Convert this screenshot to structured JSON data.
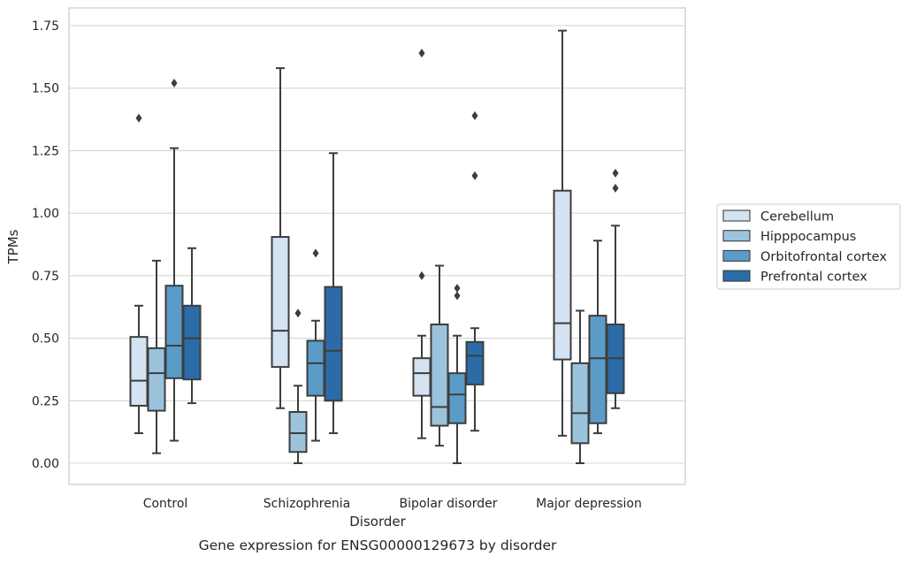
{
  "chart_data": {
    "type": "box",
    "caption": "Gene expression for ENSG00000129673 by disorder",
    "xlabel": "Disorder",
    "ylabel": "TPMs",
    "ylim": [
      -0.085,
      1.82
    ],
    "yticks": [
      0.0,
      0.25,
      0.5,
      0.75,
      1.0,
      1.25,
      1.5,
      1.75
    ],
    "ytick_labels": [
      "0.00",
      "0.25",
      "0.50",
      "0.75",
      "1.00",
      "1.25",
      "1.50",
      "1.75"
    ],
    "grid": "horizontal",
    "legend_position": "right",
    "categories": [
      "Control",
      "Schizophrenia",
      "Bipolar disorder",
      "Major depression"
    ],
    "series": [
      {
        "name": "Cerebellum",
        "color": "#d4e3f2",
        "boxes": [
          {
            "whislo": 0.12,
            "q1": 0.23,
            "med": 0.33,
            "q3": 0.505,
            "whishi": 0.63,
            "fliers": [
              1.38
            ]
          },
          {
            "whislo": 0.22,
            "q1": 0.385,
            "med": 0.53,
            "q3": 0.905,
            "whishi": 1.58,
            "fliers": []
          },
          {
            "whislo": 0.1,
            "q1": 0.27,
            "med": 0.36,
            "q3": 0.42,
            "whishi": 0.51,
            "fliers": [
              0.75,
              1.64
            ]
          },
          {
            "whislo": 0.11,
            "q1": 0.415,
            "med": 0.56,
            "q3": 1.09,
            "whishi": 1.73,
            "fliers": []
          }
        ]
      },
      {
        "name": "Hipppocampus",
        "color": "#9cc3dc",
        "boxes": [
          {
            "whislo": 0.04,
            "q1": 0.21,
            "med": 0.36,
            "q3": 0.46,
            "whishi": 0.81,
            "fliers": []
          },
          {
            "whislo": 0.0,
            "q1": 0.045,
            "med": 0.12,
            "q3": 0.205,
            "whishi": 0.31,
            "fliers": [
              0.6
            ]
          },
          {
            "whislo": 0.07,
            "q1": 0.15,
            "med": 0.225,
            "q3": 0.555,
            "whishi": 0.79,
            "fliers": []
          },
          {
            "whislo": 0.0,
            "q1": 0.08,
            "med": 0.2,
            "q3": 0.4,
            "whishi": 0.61,
            "fliers": []
          }
        ]
      },
      {
        "name": "Orbitofrontal cortex",
        "color": "#5b9bc8",
        "boxes": [
          {
            "whislo": 0.09,
            "q1": 0.34,
            "med": 0.47,
            "q3": 0.71,
            "whishi": 1.26,
            "fliers": [
              1.52
            ]
          },
          {
            "whislo": 0.09,
            "q1": 0.27,
            "med": 0.4,
            "q3": 0.49,
            "whishi": 0.57,
            "fliers": [
              0.84
            ]
          },
          {
            "whislo": 0.0,
            "q1": 0.16,
            "med": 0.275,
            "q3": 0.36,
            "whishi": 0.51,
            "fliers": [
              0.67,
              0.7
            ]
          },
          {
            "whislo": 0.12,
            "q1": 0.16,
            "med": 0.42,
            "q3": 0.59,
            "whishi": 0.89,
            "fliers": []
          }
        ]
      },
      {
        "name": "Prefrontal cortex",
        "color": "#2b6ca8",
        "boxes": [
          {
            "whislo": 0.24,
            "q1": 0.335,
            "med": 0.5,
            "q3": 0.63,
            "whishi": 0.86,
            "fliers": []
          },
          {
            "whislo": 0.12,
            "q1": 0.25,
            "med": 0.45,
            "q3": 0.705,
            "whishi": 1.24,
            "fliers": []
          },
          {
            "whislo": 0.13,
            "q1": 0.315,
            "med": 0.43,
            "q3": 0.485,
            "whishi": 0.54,
            "fliers": [
              1.15,
              1.39
            ]
          },
          {
            "whislo": 0.22,
            "q1": 0.28,
            "med": 0.42,
            "q3": 0.555,
            "whishi": 0.95,
            "fliers": [
              1.1,
              1.16
            ]
          }
        ]
      }
    ]
  }
}
